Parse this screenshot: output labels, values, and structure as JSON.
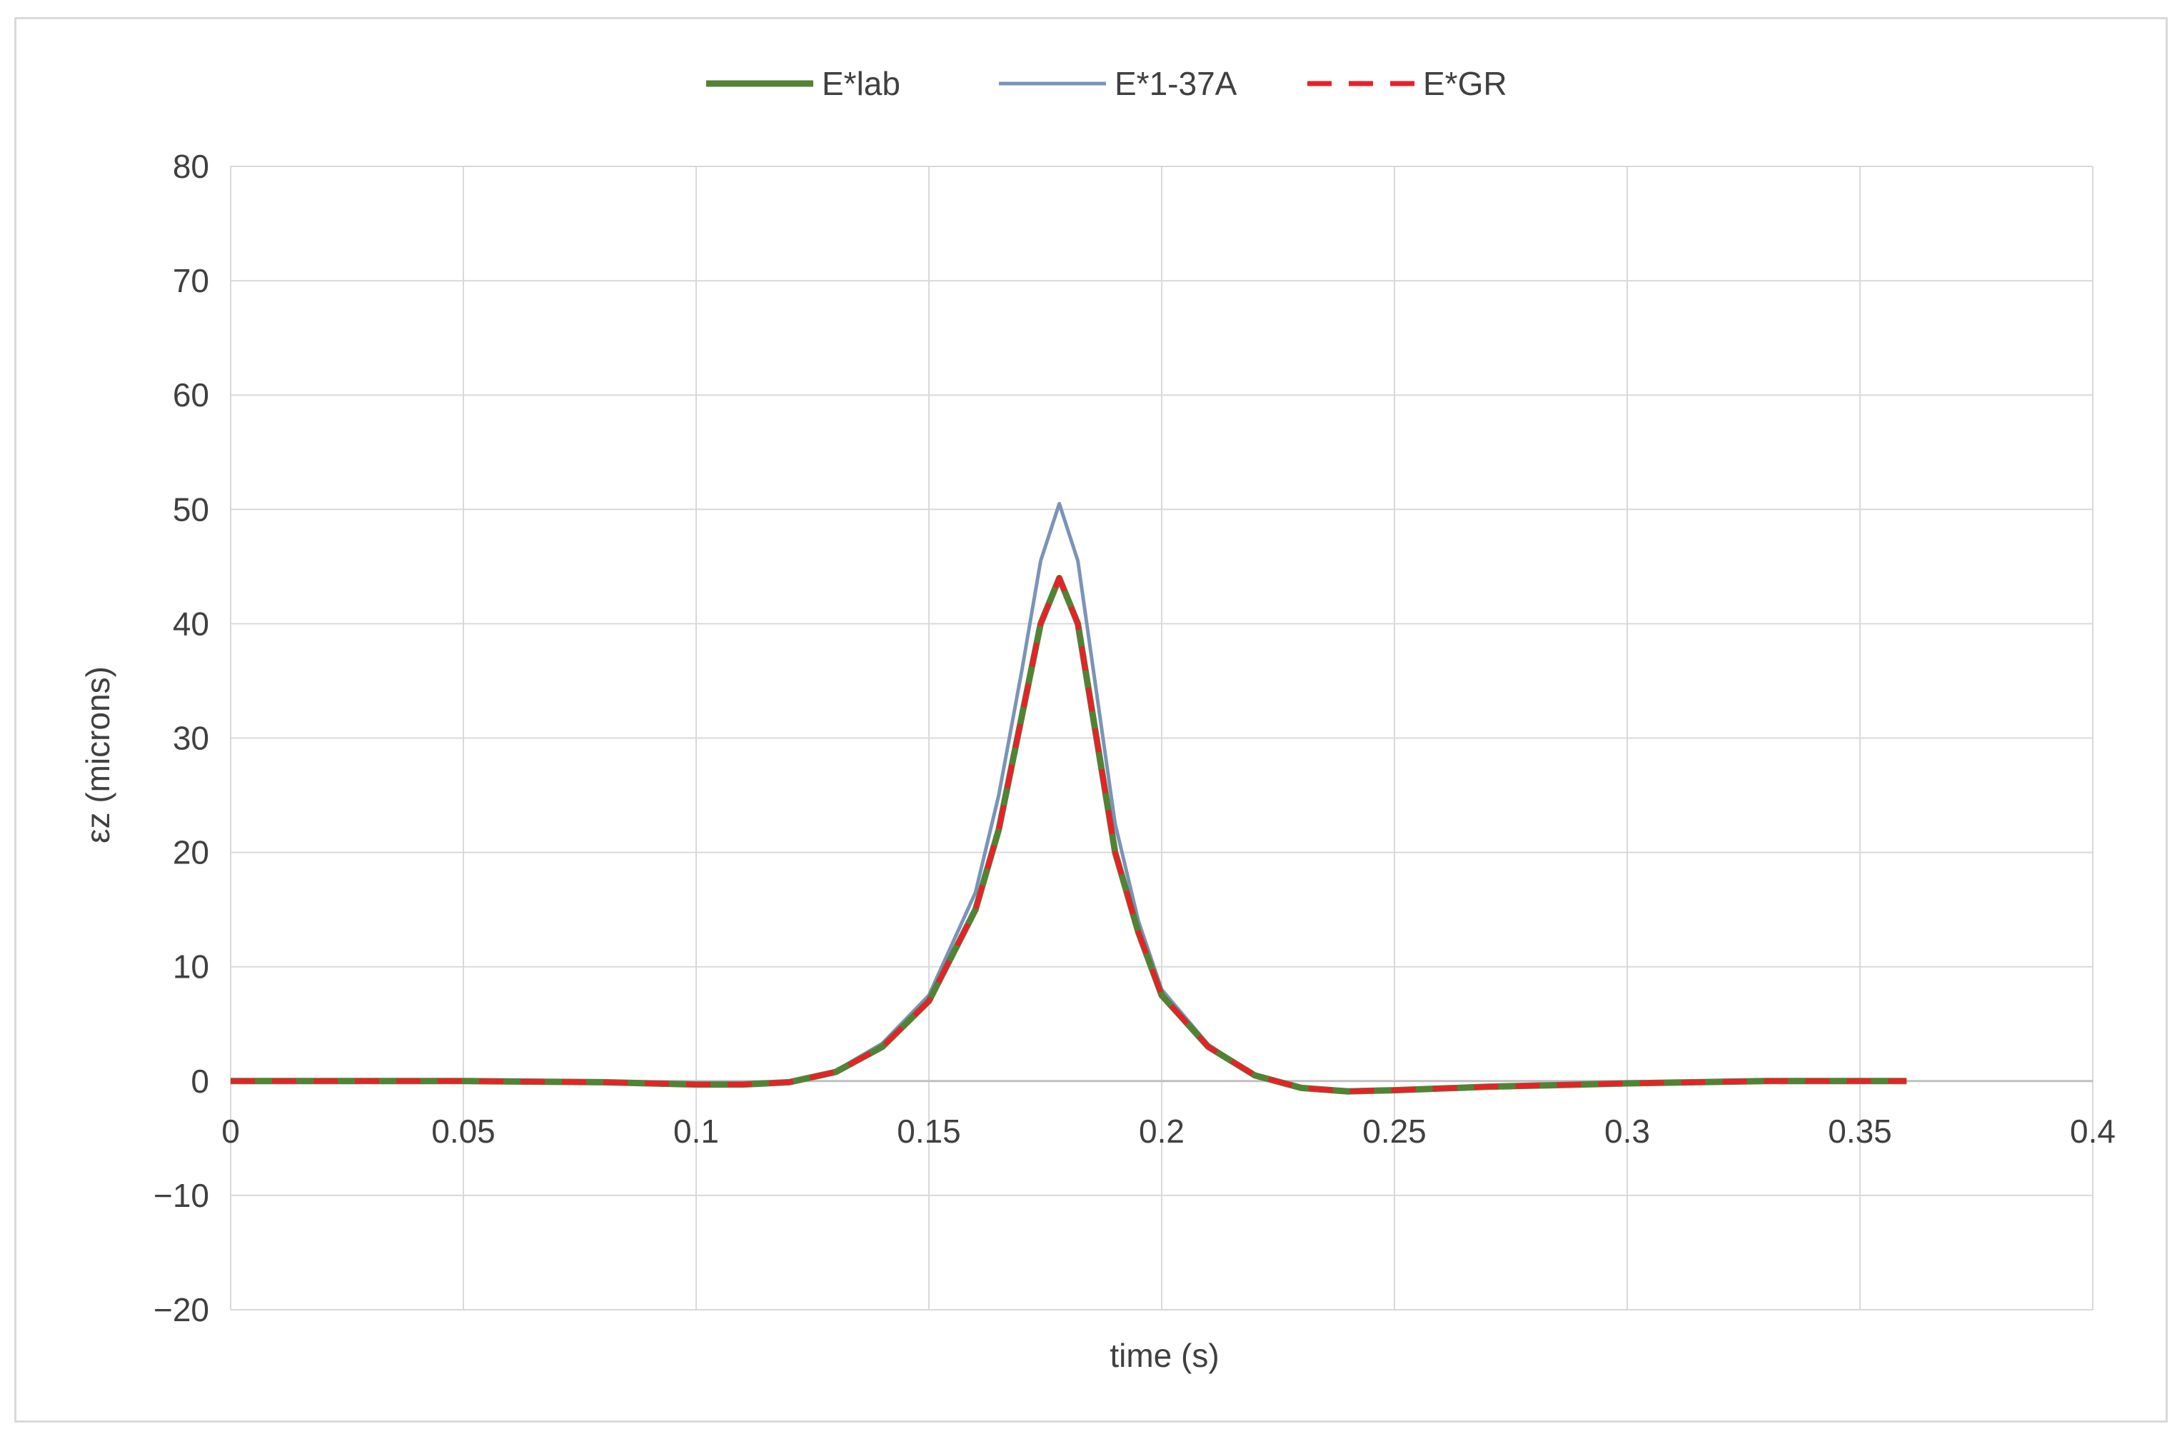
{
  "chart_data": {
    "type": "line",
    "title": "",
    "xlabel": "time (s)",
    "ylabel": "εz (microns)",
    "xlim": [
      0,
      0.4
    ],
    "ylim": [
      -20,
      80
    ],
    "x_ticks": [
      "0",
      "0.05",
      "0.1",
      "0.15",
      "0.2",
      "0.25",
      "0.3",
      "0.35",
      "0.4"
    ],
    "y_ticks": [
      "−20",
      "−10",
      "0",
      "10",
      "20",
      "30",
      "40",
      "50",
      "60",
      "70",
      "80"
    ],
    "grid": true,
    "legend_position": "top",
    "series": [
      {
        "name": "E*lab",
        "color": "#548235",
        "dash": "solid",
        "x": [
          0,
          0.05,
          0.08,
          0.1,
          0.11,
          0.12,
          0.13,
          0.14,
          0.15,
          0.16,
          0.165,
          0.17,
          0.174,
          0.178,
          0.182,
          0.186,
          0.19,
          0.195,
          0.2,
          0.21,
          0.22,
          0.23,
          0.24,
          0.25,
          0.27,
          0.3,
          0.33,
          0.36
        ],
        "y": [
          0,
          0,
          -0.1,
          -0.3,
          -0.3,
          -0.1,
          0.8,
          3,
          7,
          15,
          22,
          32,
          40,
          44,
          40,
          30,
          20,
          13,
          7.5,
          3,
          0.5,
          -0.6,
          -0.9,
          -0.8,
          -0.5,
          -0.2,
          0,
          0
        ]
      },
      {
        "name": "E*1-37A",
        "color": "#7b93b8",
        "dash": "solid",
        "x": [
          0,
          0.05,
          0.08,
          0.1,
          0.11,
          0.12,
          0.13,
          0.14,
          0.15,
          0.16,
          0.165,
          0.17,
          0.174,
          0.178,
          0.182,
          0.186,
          0.19,
          0.195,
          0.2,
          0.21,
          0.22,
          0.23,
          0.24,
          0.25,
          0.27,
          0.3,
          0.33,
          0.36
        ],
        "y": [
          0,
          0,
          -0.1,
          -0.3,
          -0.3,
          -0.1,
          0.9,
          3.3,
          7.5,
          16.5,
          25,
          36,
          45.5,
          50.5,
          45.5,
          34,
          22.5,
          14,
          8,
          3.2,
          0.5,
          -0.6,
          -0.9,
          -0.8,
          -0.5,
          -0.2,
          0,
          0
        ]
      },
      {
        "name": "E*GR",
        "color": "#e8202a",
        "dash": "dashed",
        "x": [
          0,
          0.05,
          0.08,
          0.1,
          0.11,
          0.12,
          0.13,
          0.14,
          0.15,
          0.16,
          0.165,
          0.17,
          0.174,
          0.178,
          0.182,
          0.186,
          0.19,
          0.195,
          0.2,
          0.21,
          0.22,
          0.23,
          0.24,
          0.25,
          0.27,
          0.3,
          0.33,
          0.36
        ],
        "y": [
          0,
          0,
          -0.1,
          -0.3,
          -0.3,
          -0.1,
          0.8,
          3,
          7,
          15,
          22,
          32,
          40,
          44,
          40,
          30,
          20,
          13,
          7.5,
          3,
          0.5,
          -0.6,
          -0.9,
          -0.8,
          -0.5,
          -0.2,
          0,
          0
        ]
      }
    ]
  }
}
